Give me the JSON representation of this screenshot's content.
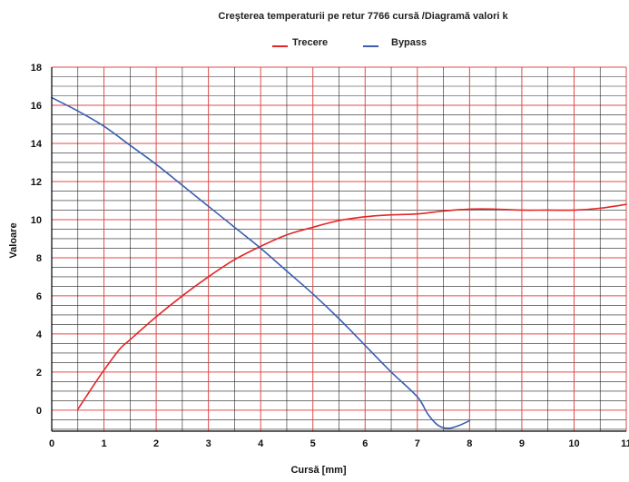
{
  "chart_data": {
    "type": "line",
    "title": "Creşterea temperaturii pe retur 7766 cursă /Diagramă valori k",
    "xlabel": "Cursă [mm]",
    "ylabel": "Valoare",
    "xlim": [
      0,
      11
    ],
    "ylim": [
      -1.1,
      18
    ],
    "x_ticks": [
      0,
      1,
      2,
      3,
      4,
      5,
      6,
      7,
      8,
      9,
      10,
      11
    ],
    "x_tick_labels": [
      "0",
      "1",
      "2",
      "3",
      "4",
      "5",
      "6",
      "7",
      "8",
      "9",
      "10",
      "11"
    ],
    "y_ticks": [
      0,
      2,
      4,
      6,
      8,
      10,
      12,
      14,
      16,
      18
    ],
    "y_tick_labels": [
      "0",
      "2",
      "4",
      "6",
      "8",
      "10",
      "12",
      "14",
      "16",
      "18"
    ],
    "grid": true,
    "legend_position": "top-center",
    "series": [
      {
        "name": "Trecere",
        "color": "#e32626",
        "x": [
          0.5,
          0.8,
          1.0,
          1.3,
          1.5,
          2.0,
          2.5,
          3.0,
          3.5,
          4.0,
          4.5,
          5.0,
          5.5,
          6.0,
          6.5,
          7.0,
          7.5,
          8.0,
          8.5,
          9.0,
          9.5,
          10.0,
          10.5,
          11.0
        ],
        "y": [
          0.05,
          1.3,
          2.1,
          3.2,
          3.7,
          4.9,
          6.0,
          7.0,
          7.9,
          8.6,
          9.2,
          9.6,
          9.95,
          10.15,
          10.25,
          10.3,
          10.45,
          10.55,
          10.55,
          10.5,
          10.5,
          10.5,
          10.6,
          10.8
        ]
      },
      {
        "name": "Bypass",
        "color": "#3a5fb0",
        "x": [
          0,
          0.5,
          1.0,
          1.5,
          2.0,
          2.5,
          3.0,
          3.5,
          4.0,
          4.5,
          5.0,
          5.5,
          6.0,
          6.5,
          7.0,
          7.2,
          7.4,
          7.6,
          7.8,
          8.0
        ],
        "y": [
          16.4,
          15.7,
          14.9,
          13.9,
          12.9,
          11.8,
          10.7,
          9.6,
          8.5,
          7.3,
          6.1,
          4.8,
          3.4,
          2.0,
          0.7,
          -0.2,
          -0.8,
          -0.95,
          -0.8,
          -0.55
        ]
      }
    ]
  }
}
